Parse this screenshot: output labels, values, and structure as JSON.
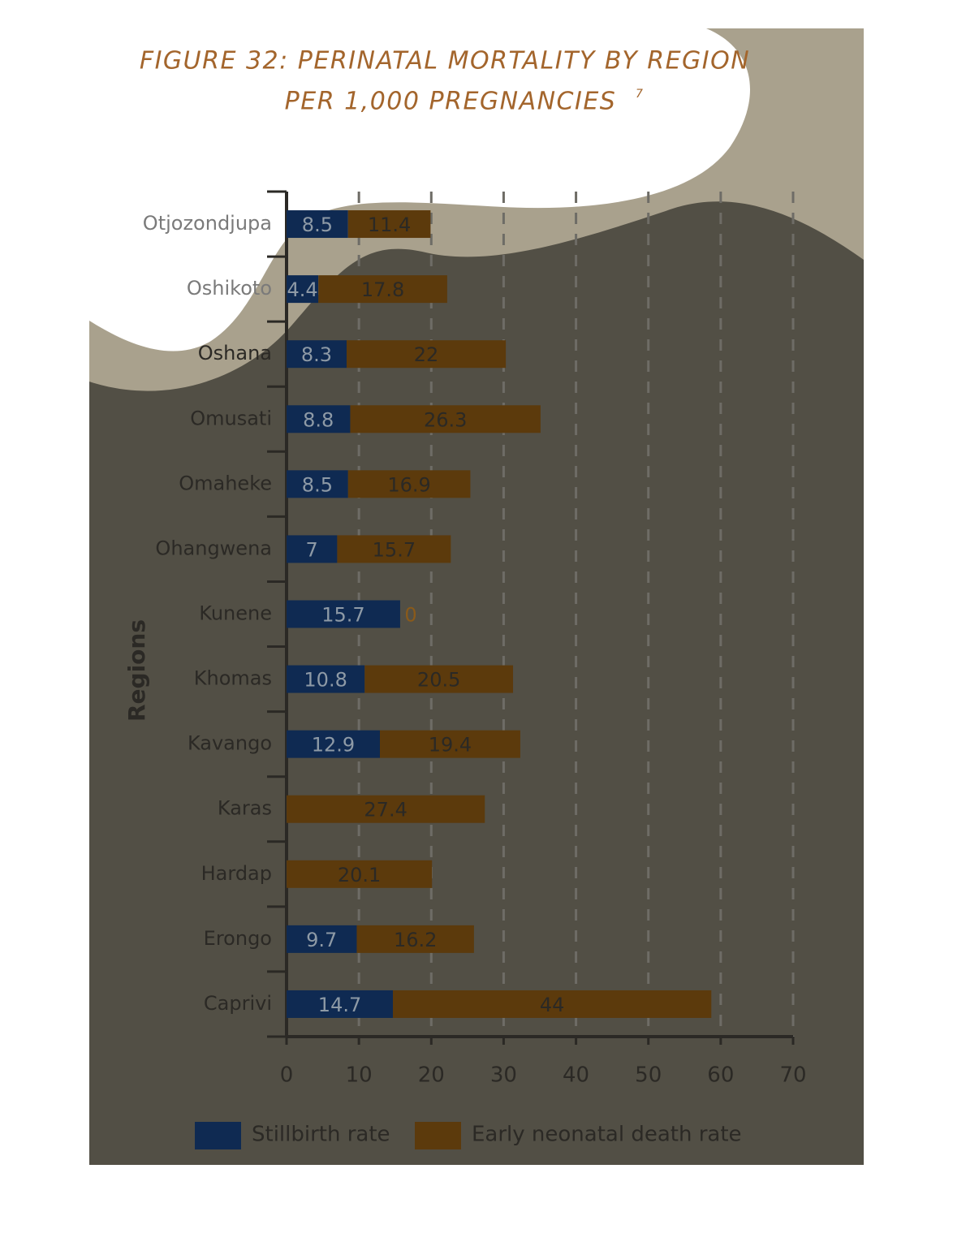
{
  "chart_data": {
    "type": "stacked-barh",
    "title": "FIGURE 32: PERINATAL MORTALITY BY REGION",
    "subtitle": "PER 1,000 PREGNANCIES",
    "subtitle_note": "7",
    "y_label": "Regions",
    "categories": [
      "Otjozondjupa",
      "Oshikoto",
      "Oshana",
      "Omusati",
      "Omaheke",
      "Ohangwena",
      "Kunene",
      "Khomas",
      "Kavango",
      "Karas",
      "Hardap",
      "Erongo",
      "Caprivi"
    ],
    "series": [
      {
        "name": "Stillbirth rate",
        "color": "#0f2a52",
        "values": [
          8.5,
          4.4,
          8.3,
          8.8,
          8.5,
          7,
          15.7,
          10.8,
          12.9,
          0,
          0,
          9.7,
          14.7
        ]
      },
      {
        "name": "Early neonatal death rate",
        "color": "#5c3a0c",
        "values": [
          11.4,
          17.8,
          22,
          26.3,
          16.9,
          15.7,
          0,
          20.5,
          19.4,
          27.4,
          20.1,
          16.2,
          44
        ]
      }
    ],
    "xlim": [
      0,
      70
    ],
    "xticks": [
      0,
      10,
      20,
      30,
      40,
      50,
      60,
      70
    ],
    "grid": true,
    "legend": "bottom"
  }
}
